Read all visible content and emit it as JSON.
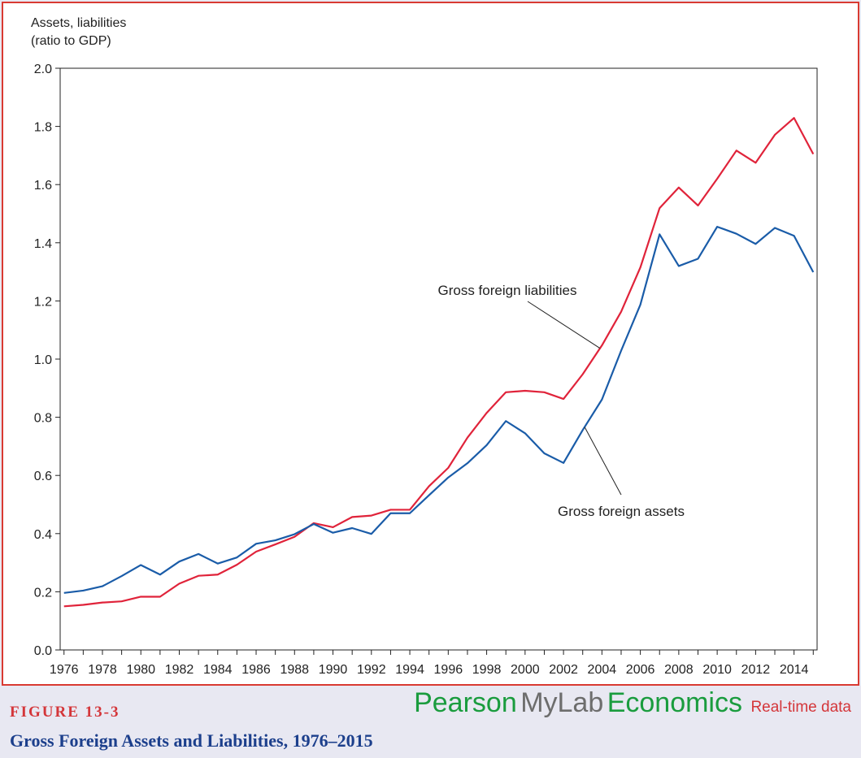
{
  "figure": {
    "number": "FIGURE 13-3",
    "title": "Gross Foreign Assets and Liabilities, 1976–2015"
  },
  "branding": {
    "pearson": "Pearson",
    "mylab": "MyLab",
    "economics": "Economics",
    "realtime": "Real-time data"
  },
  "colors": {
    "liabilities": "#e0233a",
    "assets": "#1a5ca8",
    "frame_border": "#d93a32",
    "figure_number": "#d4363a",
    "figure_title": "#1c3f8c",
    "brand_green": "#1a9c3e",
    "brand_gray": "#6d6d6d"
  },
  "chart_data": {
    "type": "line",
    "title": "",
    "xlabel": "",
    "ylabel_lines": [
      "Assets, liabilities",
      "(ratio to GDP)"
    ],
    "xlim": [
      1975.8,
      2015.2
    ],
    "ylim": [
      0,
      2.0
    ],
    "yticks": [
      0.0,
      0.2,
      0.4,
      0.6,
      0.8,
      1.0,
      1.2,
      1.4,
      1.6,
      1.8,
      2.0
    ],
    "ytick_labels": [
      "0.0",
      "0.2",
      "0.4",
      "0.6",
      "0.8",
      "1.0",
      "1.2",
      "1.4",
      "1.6",
      "1.8",
      "2.0"
    ],
    "xticks": [
      1976,
      1978,
      1980,
      1982,
      1984,
      1986,
      1988,
      1990,
      1992,
      1994,
      1996,
      1998,
      2000,
      2002,
      2004,
      2006,
      2008,
      2010,
      2012,
      2014
    ],
    "xtick_labels": [
      "1976",
      "1978",
      "1980",
      "1982",
      "1984",
      "1986",
      "1988",
      "1990",
      "1992",
      "1994",
      "1996",
      "1998",
      "2000",
      "2002",
      "2004",
      "2006",
      "2008",
      "2010",
      "2012",
      "2014"
    ],
    "grid": false,
    "x": [
      1976,
      1977,
      1978,
      1979,
      1980,
      1981,
      1982,
      1983,
      1984,
      1985,
      1986,
      1987,
      1988,
      1989,
      1990,
      1991,
      1992,
      1993,
      1994,
      1995,
      1996,
      1997,
      1998,
      1999,
      2000,
      2001,
      2002,
      2003,
      2004,
      2005,
      2006,
      2007,
      2008,
      2009,
      2010,
      2011,
      2012,
      2013,
      2014,
      2015
    ],
    "series": [
      {
        "name": "Gross foreign liabilities",
        "color": "#e0233a",
        "values": [
          0.15,
          0.155,
          0.163,
          0.167,
          0.183,
          0.183,
          0.228,
          0.255,
          0.259,
          0.293,
          0.338,
          0.363,
          0.389,
          0.436,
          0.422,
          0.457,
          0.462,
          0.482,
          0.482,
          0.563,
          0.626,
          0.73,
          0.815,
          0.886,
          0.891,
          0.886,
          0.863,
          0.948,
          1.047,
          1.163,
          1.315,
          1.519,
          1.59,
          1.528,
          1.62,
          1.717,
          1.675,
          1.771,
          1.829,
          1.705
        ]
      },
      {
        "name": "Gross foreign assets",
        "color": "#1a5ca8",
        "values": [
          0.196,
          0.204,
          0.219,
          0.254,
          0.292,
          0.259,
          0.304,
          0.33,
          0.297,
          0.318,
          0.365,
          0.377,
          0.398,
          0.433,
          0.403,
          0.419,
          0.399,
          0.47,
          0.47,
          0.532,
          0.593,
          0.642,
          0.704,
          0.787,
          0.745,
          0.676,
          0.643,
          0.756,
          0.861,
          1.029,
          1.187,
          1.429,
          1.32,
          1.345,
          1.455,
          1.431,
          1.396,
          1.451,
          1.424,
          1.299
        ]
      }
    ],
    "annotations": [
      {
        "text": "Gross foreign liabilities",
        "series": 0,
        "point_x": 2003.9
      },
      {
        "text": "Gross foreign assets",
        "series": 1,
        "point_x": 2003.1
      }
    ]
  }
}
